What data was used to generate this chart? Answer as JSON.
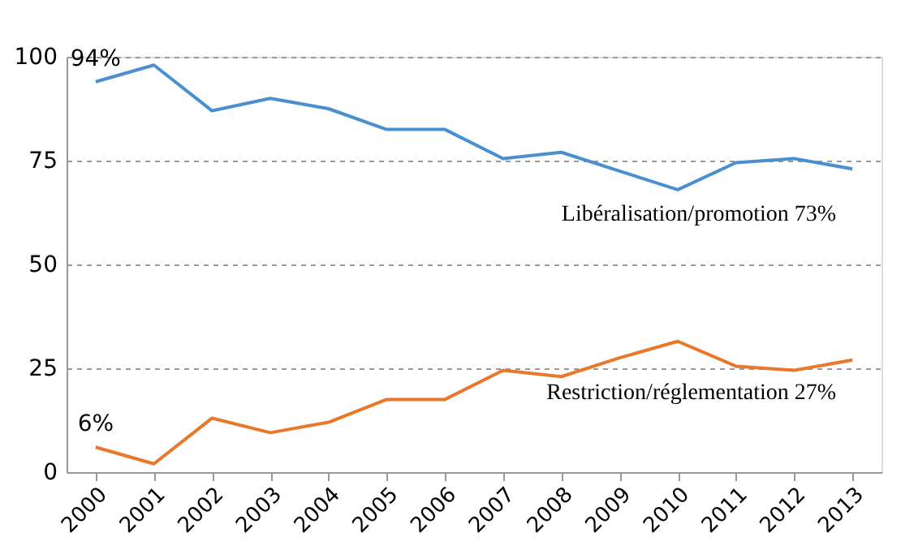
{
  "chart_data": {
    "type": "line",
    "categories": [
      "2000",
      "2001",
      "2002",
      "2003",
      "2004",
      "2005",
      "2006",
      "2007",
      "2008",
      "2009",
      "2010",
      "2011",
      "2012",
      "2013"
    ],
    "series": [
      {
        "name": "Libéralisation/promotion 73%",
        "color": "#4a8fd0",
        "values": [
          94,
          98,
          87,
          90,
          87.5,
          82.5,
          82.5,
          75.5,
          77,
          72.5,
          68,
          74.5,
          75.5,
          73
        ],
        "value_labels": [
          "94%",
          null,
          null,
          null,
          null,
          null,
          null,
          null,
          null,
          null,
          null,
          null,
          null,
          null
        ]
      },
      {
        "name": "Restriction/réglementation 27%",
        "color": "#e9782a",
        "values": [
          6,
          2,
          13,
          9.5,
          12,
          17.5,
          17.5,
          24.5,
          23,
          27.5,
          31.5,
          25.5,
          24.5,
          27
        ],
        "value_labels": [
          "6%",
          null,
          null,
          null,
          null,
          null,
          null,
          null,
          null,
          null,
          null,
          null,
          null,
          null
        ]
      }
    ],
    "ylim": [
      0,
      100
    ],
    "yticks": [
      0,
      25,
      50,
      75,
      100
    ],
    "grid": "y",
    "marker": "none",
    "line_style": "solid"
  }
}
